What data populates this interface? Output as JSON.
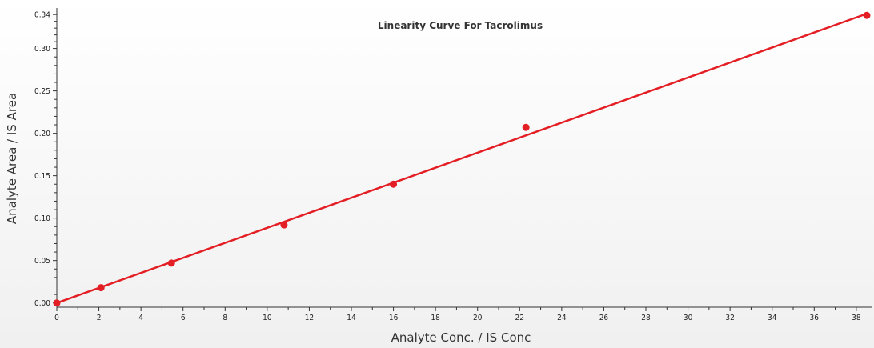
{
  "chart_data": {
    "type": "scatter",
    "title": "Linearity Curve For Tacrolimus",
    "xlabel": "Analyte Conc. / IS Conc",
    "ylabel": "Analyte Area / IS Area",
    "xlim": [
      0,
      38.5
    ],
    "ylim": [
      -0.005,
      0.343
    ],
    "x_ticks": [
      "0",
      "2",
      "4",
      "6",
      "8",
      "10",
      "12",
      "14",
      "16",
      "18",
      "20",
      "22",
      "24",
      "26",
      "28",
      "30",
      "32",
      "34",
      "36",
      "38"
    ],
    "y_ticks": [
      "0.00",
      "0.05",
      "0.10",
      "0.15",
      "0.20",
      "0.25",
      "0.30",
      "0.34"
    ],
    "grid": false,
    "series": [
      {
        "points": [
          {
            "x": 0.0,
            "y": 0.0
          },
          {
            "x": 2.1,
            "y": 0.018
          },
          {
            "x": 5.45,
            "y": 0.047
          },
          {
            "x": 10.8,
            "y": 0.092
          },
          {
            "x": 16.0,
            "y": 0.14
          },
          {
            "x": 22.3,
            "y": 0.207
          },
          {
            "x": 38.5,
            "y": 0.339
          }
        ],
        "color": "#e31e24"
      }
    ],
    "trendline": {
      "start": {
        "x": 0.0,
        "y": 0.0
      },
      "end": {
        "x": 38.5,
        "y": 0.341
      },
      "color": "#e31e24"
    },
    "background_gradient": [
      "#ffffff",
      "#f0f0f0"
    ]
  }
}
